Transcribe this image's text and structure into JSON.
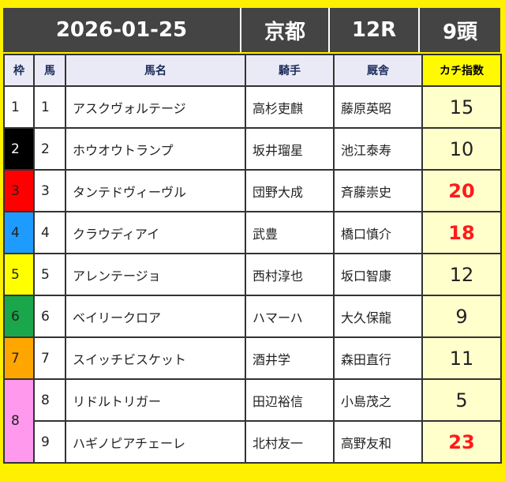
{
  "header": {
    "date": "2026-01-25",
    "venue": "京都",
    "race": "12R",
    "runners": "9頭"
  },
  "columns": {
    "waku": "枠",
    "uma": "馬",
    "name": "馬名",
    "jockey": "騎手",
    "trainer": "厩舎",
    "score": "カチ指数"
  },
  "colors": {
    "frame": "#ffef00",
    "header_bg": "#444444",
    "highlight_score": "#ff1a1a",
    "score_bg": "#ffffcc",
    "waku": {
      "1": "#ffffff",
      "2": "#000000",
      "3": "#ff0000",
      "4": "#1e9bff",
      "5": "#ffff00",
      "6": "#1aa64a",
      "7": "#ffa500",
      "8": "#ff99ee"
    }
  },
  "rows": [
    {
      "waku": "1",
      "uma": "1",
      "name": "アスクヴォルテージ",
      "jockey": "高杉吏麒",
      "trainer": "藤原英昭",
      "score": "15",
      "highlight": false
    },
    {
      "waku": "2",
      "uma": "2",
      "name": "ホウオウトランプ",
      "jockey": "坂井瑠星",
      "trainer": "池江泰寿",
      "score": "10",
      "highlight": false
    },
    {
      "waku": "3",
      "uma": "3",
      "name": "タンテドヴィーヴル",
      "jockey": "団野大成",
      "trainer": "斉藤崇史",
      "score": "20",
      "highlight": true
    },
    {
      "waku": "4",
      "uma": "4",
      "name": "クラウディアイ",
      "jockey": "武豊",
      "trainer": "橋口慎介",
      "score": "18",
      "highlight": true
    },
    {
      "waku": "5",
      "uma": "5",
      "name": "アレンテージョ",
      "jockey": "西村淳也",
      "trainer": "坂口智康",
      "score": "12",
      "highlight": false
    },
    {
      "waku": "6",
      "uma": "6",
      "name": "ベイリークロア",
      "jockey": "ハマーハ",
      "trainer": "大久保龍",
      "score": "9",
      "highlight": false
    },
    {
      "waku": "7",
      "uma": "7",
      "name": "スイッチビスケット",
      "jockey": "酒井学",
      "trainer": "森田直行",
      "score": "11",
      "highlight": false
    },
    {
      "waku": "8",
      "uma": "8",
      "name": "リドルトリガー",
      "jockey": "田辺裕信",
      "trainer": "小島茂之",
      "score": "5",
      "highlight": false
    },
    {
      "waku": "8",
      "uma": "9",
      "name": "ハギノピアチェーレ",
      "jockey": "北村友一",
      "trainer": "高野友和",
      "score": "23",
      "highlight": true
    }
  ]
}
